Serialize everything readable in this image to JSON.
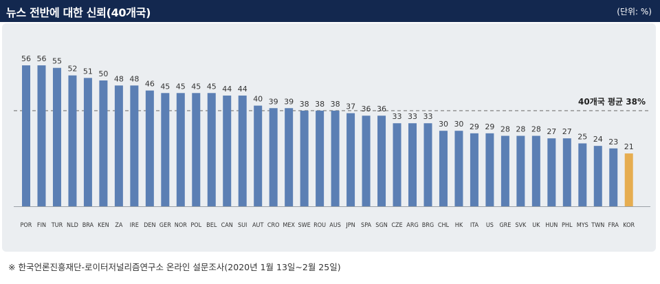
{
  "header": {
    "title": "뉴스 전반에 대한 신뢰(40개국)",
    "unit": "(단위: %)"
  },
  "footnote": "※ 한국언론진흥재단-로이터저널리즘연구소 온라인 설문조사(2020년 1월 13일~2월 25일)",
  "colors": {
    "bar": "#5b7fb4",
    "highlight": "#e6ad50",
    "header_bg": "#13284f",
    "panel_bg": "#ebeef1",
    "average_line": "#8a8a8a"
  },
  "chart_data": {
    "type": "bar",
    "categories": [
      "POR",
      "FIN",
      "TUR",
      "NLD",
      "BRA",
      "KEN",
      "ZA",
      "IRE",
      "DEN",
      "GER",
      "NOR",
      "POL",
      "BEL",
      "CAN",
      "SUI",
      "AUT",
      "CRO",
      "MEX",
      "SWE",
      "ROU",
      "AUS",
      "JPN",
      "SPA",
      "SGN",
      "CZE",
      "ARG",
      "BRG",
      "CHL",
      "HK",
      "ITA",
      "US",
      "GRE",
      "SVK",
      "UK",
      "HUN",
      "PHL",
      "MYS",
      "TWN",
      "FRA",
      "KOR"
    ],
    "values": [
      56,
      56,
      55,
      52,
      51,
      50,
      48,
      48,
      46,
      45,
      45,
      45,
      45,
      44,
      44,
      40,
      39,
      39,
      38,
      38,
      38,
      37,
      36,
      36,
      33,
      33,
      33,
      30,
      30,
      29,
      29,
      28,
      28,
      28,
      27,
      27,
      25,
      24,
      23,
      21
    ],
    "highlight_category": "KOR",
    "average": {
      "value": 38,
      "label": "40개국 평균 38%"
    },
    "ylim": [
      0,
      60
    ],
    "grid": false,
    "legend": "none",
    "title": "뉴스 전반에 대한 신뢰(40개국)",
    "xlabel": "",
    "ylabel": ""
  }
}
